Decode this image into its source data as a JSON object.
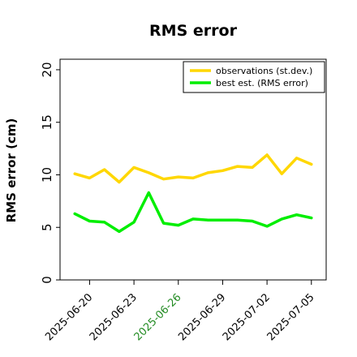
{
  "chart_data": {
    "type": "line",
    "title": "RMS error",
    "xlabel": "",
    "ylabel": "RMS error (cm)",
    "ylim": [
      0,
      21
    ],
    "xlim": [
      "2025-06-18",
      "2025-07-06"
    ],
    "yticks": [
      0,
      5,
      10,
      15,
      20
    ],
    "ytick_labels": [
      "0",
      "5",
      "10",
      "15",
      "20"
    ],
    "xticks": [
      "2025-06-20",
      "2025-06-23",
      "2025-06-26",
      "2025-06-29",
      "2025-07-02",
      "2025-07-05"
    ],
    "xtick_labels": [
      "2025-06-20",
      "2025-06-23",
      "2025-06-26",
      "2025-06-29",
      "2025-07-02",
      "2025-07-05"
    ],
    "highlighted_xtick": "2025-06-26",
    "grid": false,
    "legend_position": "top-right",
    "x": [
      "2025-06-19",
      "2025-06-20",
      "2025-06-21",
      "2025-06-22",
      "2025-06-23",
      "2025-06-24",
      "2025-06-25",
      "2025-06-26",
      "2025-06-27",
      "2025-06-28",
      "2025-06-29",
      "2025-06-30",
      "2025-07-01",
      "2025-07-02",
      "2025-07-03",
      "2025-07-04",
      "2025-07-05"
    ],
    "series": [
      {
        "name": "observations (st.dev.)",
        "color": "#FFD700",
        "values": [
          10.1,
          9.7,
          10.5,
          9.3,
          10.7,
          10.2,
          9.6,
          9.8,
          9.7,
          10.2,
          10.4,
          10.8,
          10.7,
          11.9,
          10.1,
          11.6,
          11.0
        ]
      },
      {
        "name": "best est. (RMS error)",
        "color": "#00EE00",
        "values": [
          6.3,
          5.6,
          5.5,
          4.6,
          5.5,
          8.3,
          5.4,
          5.2,
          5.8,
          5.7,
          5.7,
          5.7,
          5.6,
          5.1,
          5.8,
          6.2,
          5.9
        ]
      }
    ]
  },
  "colors": {
    "highlighted_tick": "#228B22",
    "text": "#000000",
    "axes": "#000000"
  }
}
